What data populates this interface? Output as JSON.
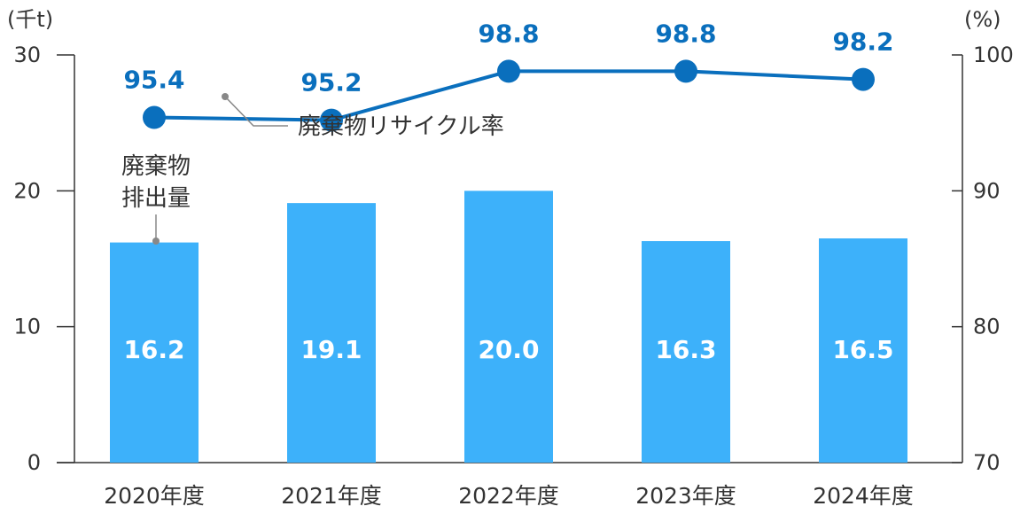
{
  "chart_data": {
    "type": "bar",
    "categories": [
      "2020年度",
      "2021年度",
      "2022年度",
      "2023年度",
      "2024年度"
    ],
    "series": [
      {
        "name": "廃棄物排出量",
        "type": "bar",
        "axis": "left",
        "values": [
          16.2,
          19.1,
          20.0,
          16.3,
          16.5
        ]
      },
      {
        "name": "廃棄物リサイクル率",
        "type": "line",
        "axis": "right",
        "values": [
          95.4,
          95.2,
          98.8,
          98.8,
          98.2
        ]
      }
    ],
    "bar_values_display": [
      "16.2",
      "19.1",
      "20.0",
      "16.3",
      "16.5"
    ],
    "line_values_display": [
      "95.4",
      "95.2",
      "98.8",
      "98.8",
      "98.2"
    ],
    "left_axis": {
      "unit": "(千t)",
      "ylim": [
        0,
        30
      ],
      "ticks": [
        "0",
        "10",
        "20",
        "30"
      ]
    },
    "right_axis": {
      "unit": "(%)",
      "ylim": [
        70,
        100
      ],
      "ticks": [
        "70",
        "80",
        "90",
        "100"
      ]
    },
    "annotations": {
      "bar_label_line1": "廃棄物",
      "bar_label_line2": "排出量",
      "line_label": "廃棄物リサイクル率"
    },
    "colors": {
      "bar": "#3db1fa",
      "line": "#0a6fbd",
      "axis": "#333333",
      "leader": "#888888"
    },
    "grid": false
  }
}
